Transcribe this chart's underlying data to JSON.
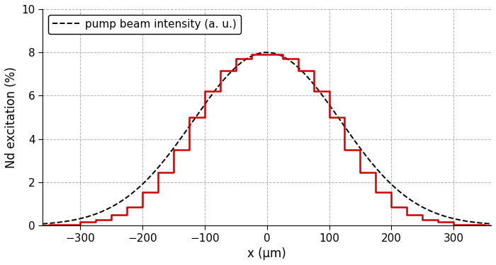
{
  "title": "",
  "xlabel": "x (μm)",
  "ylabel": "Nd excitation (%)",
  "xlim": [
    -360,
    360
  ],
  "ylim": [
    0,
    10
  ],
  "yticks": [
    0,
    2,
    4,
    6,
    8,
    10
  ],
  "xticks": [
    -300,
    -200,
    -100,
    0,
    100,
    200,
    300
  ],
  "gaussian_amplitude": 8.0,
  "gaussian_sigma": 118.0,
  "bin_edges": [
    -350,
    -300,
    -275,
    -250,
    -225,
    -200,
    -175,
    -150,
    -125,
    -100,
    -75,
    -50,
    -25,
    0,
    25,
    50,
    75,
    100,
    125,
    150,
    175,
    200,
    225,
    250,
    275,
    300,
    350
  ],
  "bin_heights": [
    0.05,
    0.15,
    0.28,
    0.5,
    0.85,
    1.55,
    2.45,
    3.5,
    5.0,
    6.2,
    7.15,
    7.7,
    7.9,
    7.9,
    7.7,
    7.15,
    6.2,
    5.0,
    3.5,
    2.45,
    1.55,
    0.85,
    0.5,
    0.28,
    0.15,
    0.05
  ],
  "histogram_color": "#cc0000",
  "gaussian_color": "#000000",
  "legend_label": "pump beam intensity (a. u.)",
  "background_color": "#ffffff",
  "grid_color": "#aaaaaa",
  "linewidth_hist": 1.8,
  "linewidth_gauss": 1.4,
  "legend_fontsize": 11,
  "axis_fontsize": 12,
  "tick_fontsize": 11
}
